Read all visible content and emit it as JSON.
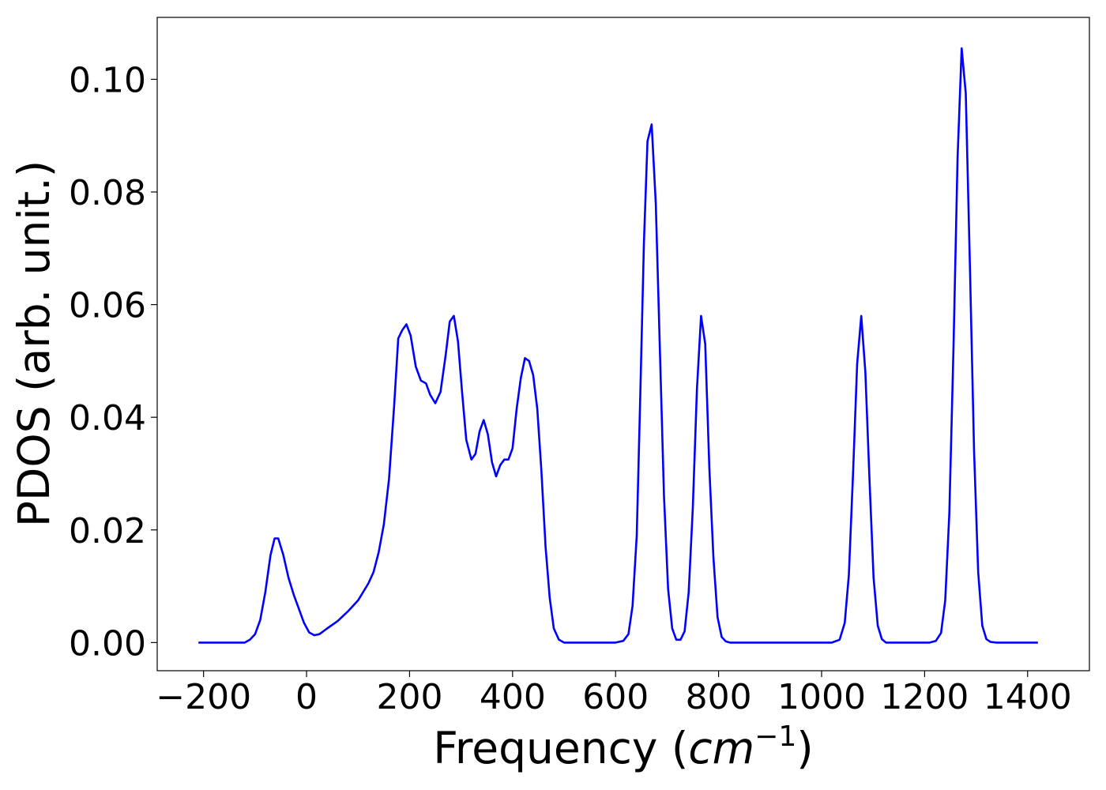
{
  "chart_data": {
    "type": "line",
    "title": "",
    "xlabel": "Frequency (",
    "xlabel_math": "cm",
    "xlabel_sup": "−1",
    "xlabel_end": ")",
    "ylabel": "PDOS (arb. unit.)",
    "xlim": [
      -290,
      1520
    ],
    "ylim": [
      -0.005,
      0.111
    ],
    "xticks": [
      -200,
      0,
      200,
      400,
      600,
      800,
      1000,
      1200,
      1400
    ],
    "xtick_labels": [
      "−200",
      "0",
      "200",
      "400",
      "600",
      "800",
      "1000",
      "1200",
      "1400"
    ],
    "yticks": [
      0.0,
      0.02,
      0.04,
      0.06,
      0.08,
      0.1
    ],
    "ytick_labels": [
      "0.00",
      "0.02",
      "0.04",
      "0.06",
      "0.08",
      "0.10"
    ],
    "grid": false,
    "series": [
      {
        "color": "#0000ff",
        "x": [
          -210,
          -120,
          -110,
          -100,
          -90,
          -80,
          -70,
          -62,
          -55,
          -45,
          -35,
          -25,
          -15,
          -5,
          5,
          15,
          25,
          40,
          60,
          80,
          100,
          120,
          130,
          140,
          150,
          160,
          170,
          178,
          186,
          194,
          202,
          212,
          222,
          232,
          240,
          250,
          260,
          270,
          278,
          286,
          294,
          302,
          310,
          320,
          328,
          336,
          344,
          352,
          360,
          368,
          376,
          384,
          392,
          400,
          408,
          416,
          424,
          432,
          440,
          448,
          456,
          464,
          472,
          480,
          490,
          500,
          520,
          600,
          615,
          625,
          633,
          641,
          648,
          655,
          662,
          670,
          678,
          686,
          694,
          702,
          710,
          718,
          726,
          734,
          742,
          750,
          758,
          766,
          774,
          782,
          790,
          798,
          806,
          814,
          822,
          830,
          1020,
          1035,
          1045,
          1053,
          1061,
          1069,
          1077,
          1085,
          1093,
          1101,
          1109,
          1117,
          1125,
          1140,
          1210,
          1222,
          1232,
          1240,
          1248,
          1256,
          1264,
          1272,
          1280,
          1288,
          1296,
          1304,
          1312,
          1320,
          1328,
          1340,
          1420
        ],
        "y": [
          0.0,
          0.0,
          0.0005,
          0.0015,
          0.004,
          0.009,
          0.0155,
          0.0185,
          0.0185,
          0.0155,
          0.0115,
          0.0085,
          0.006,
          0.0035,
          0.0018,
          0.0013,
          0.0015,
          0.0025,
          0.0038,
          0.0055,
          0.0075,
          0.0105,
          0.0125,
          0.016,
          0.021,
          0.029,
          0.042,
          0.054,
          0.0555,
          0.0565,
          0.0545,
          0.049,
          0.0465,
          0.046,
          0.044,
          0.0425,
          0.0445,
          0.051,
          0.057,
          0.058,
          0.0535,
          0.0445,
          0.036,
          0.0325,
          0.0335,
          0.0375,
          0.0395,
          0.037,
          0.032,
          0.0295,
          0.0315,
          0.0325,
          0.0325,
          0.0345,
          0.0415,
          0.047,
          0.0505,
          0.05,
          0.0475,
          0.0415,
          0.0305,
          0.017,
          0.008,
          0.0025,
          0.0005,
          0.0,
          0.0,
          0.0,
          0.0003,
          0.0015,
          0.0065,
          0.019,
          0.044,
          0.071,
          0.089,
          0.092,
          0.078,
          0.052,
          0.026,
          0.0095,
          0.0025,
          0.0005,
          0.0005,
          0.002,
          0.009,
          0.024,
          0.045,
          0.058,
          0.053,
          0.031,
          0.015,
          0.0045,
          0.001,
          0.0002,
          0.0,
          0.0,
          0.0,
          0.0005,
          0.0035,
          0.012,
          0.03,
          0.0495,
          0.058,
          0.048,
          0.029,
          0.0115,
          0.003,
          0.0006,
          0.0,
          0.0,
          0.0,
          0.0003,
          0.0017,
          0.0075,
          0.023,
          0.052,
          0.086,
          0.1055,
          0.0975,
          0.0665,
          0.034,
          0.0125,
          0.003,
          0.0006,
          0.0001,
          0.0,
          0.0
        ]
      }
    ]
  }
}
